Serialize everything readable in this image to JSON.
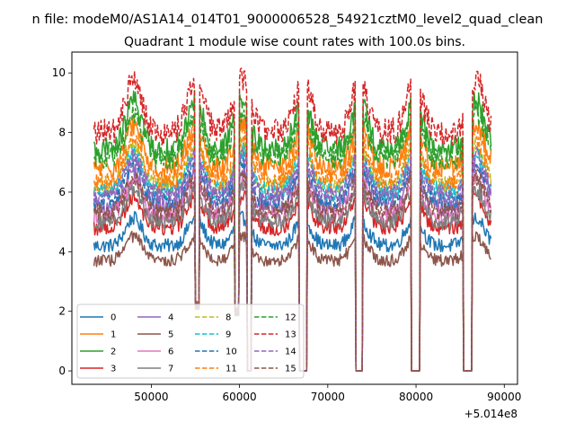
{
  "chart_data": {
    "type": "line",
    "suptitle": "n file: modeM0/AS1A14_014T01_9000006528_54921cztM0_level2_quad_clean",
    "title": "Quadrant 1 module wise count rates with 100.0s bins.",
    "xlabel": "",
    "ylabel": "",
    "x_offset_label": "+5.014e8",
    "x_range": [
      43500,
      88500
    ],
    "xlim": [
      41000,
      91500
    ],
    "ylim": [
      -0.45,
      10.7
    ],
    "xticks": [
      50000,
      60000,
      70000,
      80000,
      90000
    ],
    "xtick_labels": [
      "50000",
      "60000",
      "70000",
      "80000",
      "90000"
    ],
    "yticks": [
      0,
      2,
      4,
      6,
      8,
      10
    ],
    "ytick_labels": [
      "0",
      "2",
      "4",
      "6",
      "8",
      "10"
    ],
    "gaps": [
      {
        "start": 55000,
        "end": 55400,
        "floor": 2.2
      },
      {
        "start": 59500,
        "end": 59900,
        "floor": 2.0
      },
      {
        "start": 60900,
        "end": 61300,
        "floor": 0.0
      },
      {
        "start": 66800,
        "end": 67600,
        "floor": 0.0
      },
      {
        "start": 73200,
        "end": 73900,
        "floor": 0.0
      },
      {
        "start": 79500,
        "end": 80400,
        "floor": 0.0
      },
      {
        "start": 85400,
        "end": 86300,
        "floor": 0.0
      }
    ],
    "series": [
      {
        "name": "0",
        "mean": 4.2,
        "color": "#1f77b4",
        "dashed": false
      },
      {
        "name": "1",
        "mean": 6.8,
        "color": "#ff7f0e",
        "dashed": false
      },
      {
        "name": "2",
        "mean": 7.4,
        "color": "#2ca02c",
        "dashed": false
      },
      {
        "name": "3",
        "mean": 4.8,
        "color": "#d62728",
        "dashed": false
      },
      {
        "name": "4",
        "mean": 5.5,
        "color": "#9467bd",
        "dashed": false
      },
      {
        "name": "5",
        "mean": 3.7,
        "color": "#8c564b",
        "dashed": false
      },
      {
        "name": "6",
        "mean": 5.2,
        "color": "#e377c2",
        "dashed": false
      },
      {
        "name": "7",
        "mean": 5.0,
        "color": "#7f7f7f",
        "dashed": false
      },
      {
        "name": "8",
        "mean": 6.2,
        "color": "#bcbd22",
        "dashed": true
      },
      {
        "name": "9",
        "mean": 6.0,
        "color": "#17becf",
        "dashed": true
      },
      {
        "name": "10",
        "mean": 5.7,
        "color": "#1f77b4",
        "dashed": true
      },
      {
        "name": "11",
        "mean": 6.4,
        "color": "#ff7f0e",
        "dashed": true
      },
      {
        "name": "12",
        "mean": 7.1,
        "color": "#2ca02c",
        "dashed": true
      },
      {
        "name": "13",
        "mean": 8.0,
        "color": "#d62728",
        "dashed": true
      },
      {
        "name": "14",
        "mean": 5.9,
        "color": "#9467bd",
        "dashed": true
      },
      {
        "name": "15",
        "mean": 5.3,
        "color": "#8c564b",
        "dashed": true
      }
    ]
  }
}
